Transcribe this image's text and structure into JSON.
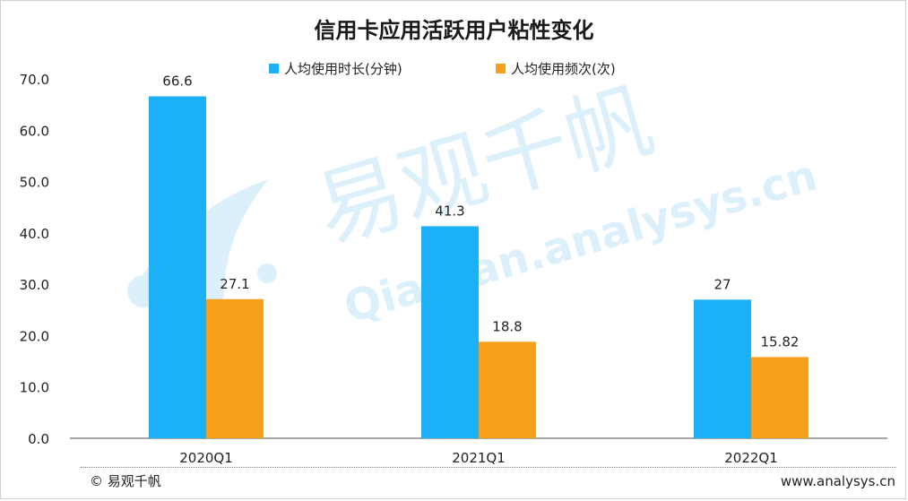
{
  "title": "信用卡应用活跃用户粘性变化",
  "footer": {
    "source": "© 易观千帆",
    "url": "www.analysys.cn"
  },
  "watermark": {
    "cn": "易观千帆",
    "en": "Qianfan.analysys.cn"
  },
  "colors": {
    "series1": "#1CB0F6",
    "series2": "#F7A01B",
    "watermark": "#BFE3F8"
  },
  "chart_data": {
    "type": "bar",
    "title": "信用卡应用活跃用户粘性变化",
    "categories": [
      "2020Q1",
      "2021Q1",
      "2022Q1"
    ],
    "series": [
      {
        "name": "人均使用时长(分钟)",
        "values": [
          66.6,
          41.3,
          27
        ],
        "labels": [
          "66.6",
          "41.3",
          "27"
        ]
      },
      {
        "name": "人均使用频次(次)",
        "values": [
          27.1,
          18.8,
          15.82
        ],
        "labels": [
          "27.1",
          "18.8",
          "15.82"
        ]
      }
    ],
    "ylim": [
      0,
      70
    ],
    "yticks": [
      "0.0",
      "10.0",
      "20.0",
      "30.0",
      "40.0",
      "50.0",
      "60.0",
      "70.0"
    ],
    "xlabel": "",
    "ylabel": "",
    "legend": "top-center",
    "grid": false
  }
}
